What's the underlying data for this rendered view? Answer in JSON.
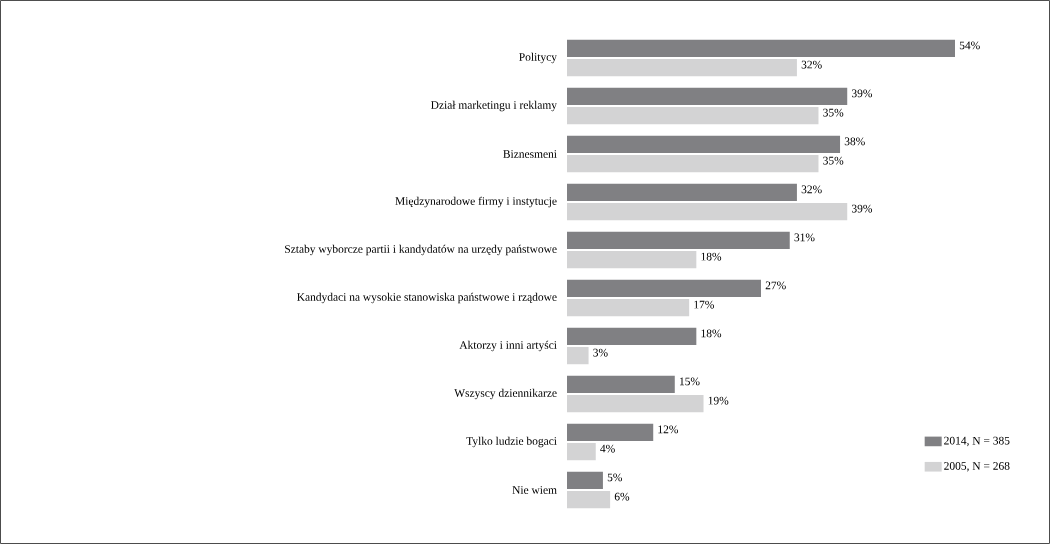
{
  "chart_data": {
    "type": "bar",
    "orientation": "horizontal",
    "categories": [
      "Politycy",
      "Dział marketingu i reklamy",
      "Biznesmeni",
      "Międzynarodowe firmy i instytucje",
      "Sztaby wyborcze partii i kandydatów na urzędy państwowe",
      "Kandydaci na wysokie stanowiska państwowe i rządowe",
      "Aktorzy i inni artyści",
      "Wszyscy dziennikarze",
      "Tylko ludzie bogaci",
      "Nie wiem"
    ],
    "series": [
      {
        "name": "2014, N = 385",
        "color": "#808083",
        "values": [
          54,
          39,
          38,
          32,
          31,
          27,
          18,
          15,
          12,
          5
        ],
        "value_labels": [
          "54%",
          "39%",
          "38%",
          "32%",
          "31%",
          "27%",
          "18%",
          "15%",
          "12%",
          "5%"
        ]
      },
      {
        "name": "2005, N = 268",
        "color": "#d3d3d4",
        "values": [
          32,
          35,
          35,
          39,
          18,
          17,
          3,
          19,
          4,
          6
        ],
        "value_labels": [
          "32%",
          "35%",
          "35%",
          "39%",
          "18%",
          "17%",
          "3%",
          "19%",
          "4%",
          "6%"
        ]
      }
    ],
    "tick_labels": "y",
    "legend": "bottom right",
    "grid": false
  }
}
